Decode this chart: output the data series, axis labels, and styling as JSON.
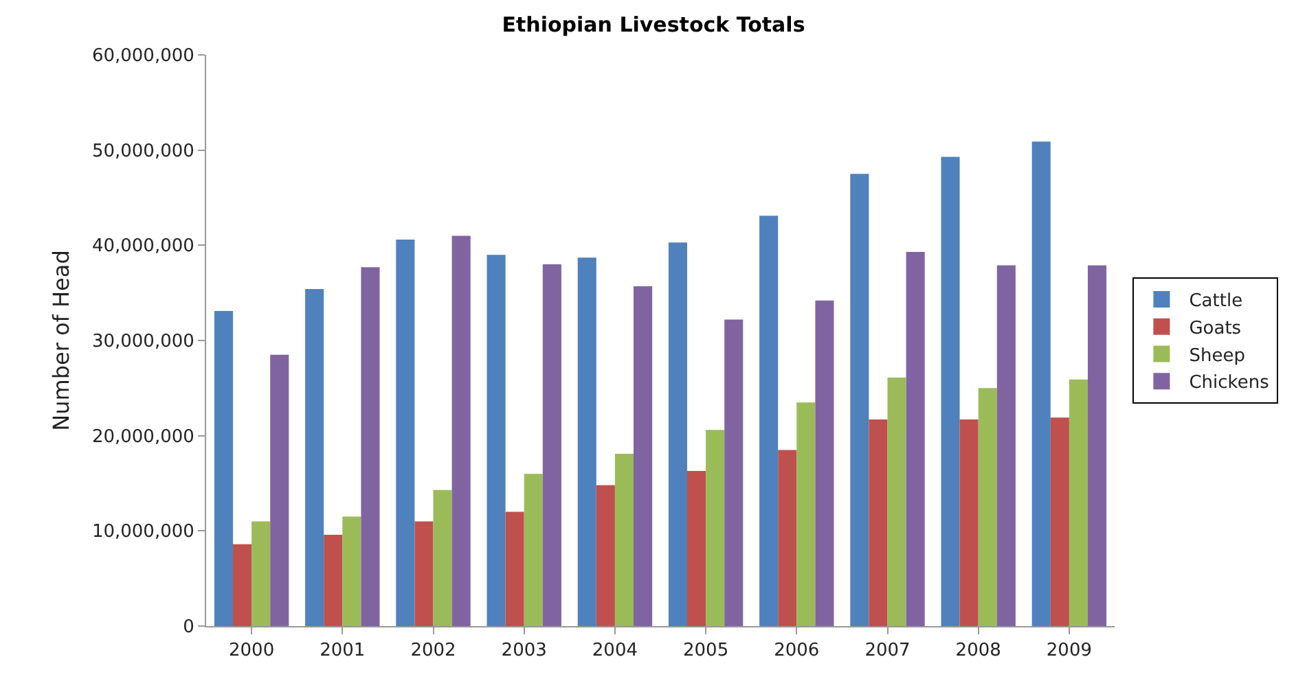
{
  "chart_data": {
    "type": "bar",
    "title": "Ethiopian Livestock Totals",
    "ylabel": "Number of Head",
    "categories": [
      "2000",
      "2001",
      "2002",
      "2003",
      "2004",
      "2005",
      "2006",
      "2007",
      "2008",
      "2009"
    ],
    "series": [
      {
        "name": "Cattle",
        "color": "#4f81bd",
        "values": [
          33100000,
          35400000,
          40600000,
          39000000,
          38700000,
          40300000,
          43100000,
          47500000,
          49300000,
          50900000
        ]
      },
      {
        "name": "Goats",
        "color": "#c0504d",
        "values": [
          8600000,
          9600000,
          11000000,
          12000000,
          14800000,
          16300000,
          18500000,
          21700000,
          21700000,
          21900000
        ]
      },
      {
        "name": "Sheep",
        "color": "#9bbb59",
        "values": [
          11000000,
          11500000,
          14300000,
          16000000,
          18100000,
          20600000,
          23500000,
          26100000,
          25000000,
          25900000
        ]
      },
      {
        "name": "Chickens",
        "color": "#8064a2",
        "values": [
          28500000,
          37700000,
          41000000,
          38000000,
          35700000,
          32200000,
          34200000,
          39300000,
          37900000,
          37900000
        ]
      }
    ],
    "ylim": [
      0,
      60000000
    ],
    "yticks": [
      {
        "value": 0,
        "label": "0"
      },
      {
        "value": 10000000,
        "label": "10,000,000"
      },
      {
        "value": 20000000,
        "label": "20,000,000"
      },
      {
        "value": 30000000,
        "label": "30,000,000"
      },
      {
        "value": 40000000,
        "label": "40,000,000"
      },
      {
        "value": 50000000,
        "label": "50,000,000"
      },
      {
        "value": 60000000,
        "label": "60,000,000"
      }
    ],
    "grid": false,
    "legend": "right"
  }
}
